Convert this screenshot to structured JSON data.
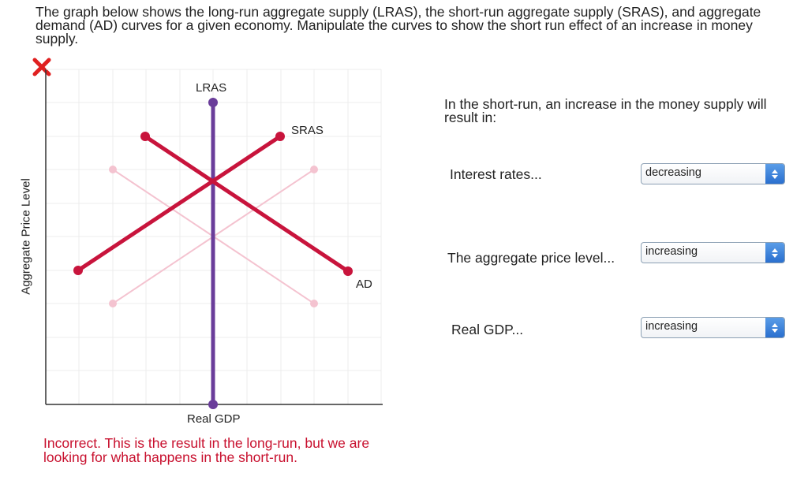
{
  "instructions": "The graph below shows the long-run aggregate supply (LRAS), the short-run aggregate supply (SRAS), and aggregate demand (AD) curves for a given economy. Manipulate the curves to show the short run effect of an increase in money supply.",
  "graph": {
    "ylabel": "Aggregate Price Level",
    "xlabel": "Real GDP",
    "curves": {
      "lras_label": "LRAS",
      "sras_label": "SRAS",
      "ad_label": "AD"
    },
    "colors": {
      "lras": "#6a3d9a",
      "active_curve": "#c8143c",
      "ghost_curve": "#f4c3d0"
    }
  },
  "feedback": {
    "status": "incorrect",
    "icon": "x-mark-icon",
    "text": "Incorrect. This is the result in the long-run, but we are looking for what happens in the short-run."
  },
  "question": {
    "prompt": "In the short-run, an increase in the money supply will result in:",
    "rows": [
      {
        "label": "Interest rates...",
        "selected": "decreasing"
      },
      {
        "label": "The aggregate price level...",
        "selected": "increasing"
      },
      {
        "label": "Real GDP...",
        "selected": "increasing"
      }
    ]
  }
}
